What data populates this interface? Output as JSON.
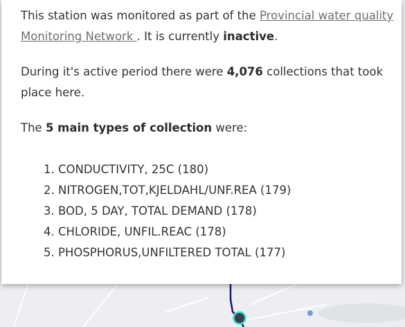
{
  "popup": {
    "p1": {
      "pre": "This station was monitored as part of  the ",
      "link": "Provincial water quality Monitoring Network ",
      "mid": ". It is currently ",
      "status": "inactive",
      "post": "."
    },
    "p2": {
      "pre": "During it's active period there were ",
      "count": "4,076",
      "post": " collections that took place here."
    },
    "p3": {
      "pre": "The ",
      "bold": "5 main types of collection",
      "post": " were:"
    },
    "collections": [
      "1. CONDUCTIVITY, 25C (180)",
      "2. NITROGEN,TOT,KJELDAHL/UNF.REA (179)",
      "3. BOD, 5 DAY, TOTAL DEMAND (178)",
      "4. CHLORIDE, UNFIL.REAC (178)",
      "5. PHOSPHORUS,UNFILTERED TOTAL (177)"
    ]
  },
  "colors": {
    "route_line": "#1a1a6e",
    "station_marker_ring": "#40e0d0",
    "station_marker_fill": "#3a3f4a",
    "small_point": "#7b96d8"
  }
}
